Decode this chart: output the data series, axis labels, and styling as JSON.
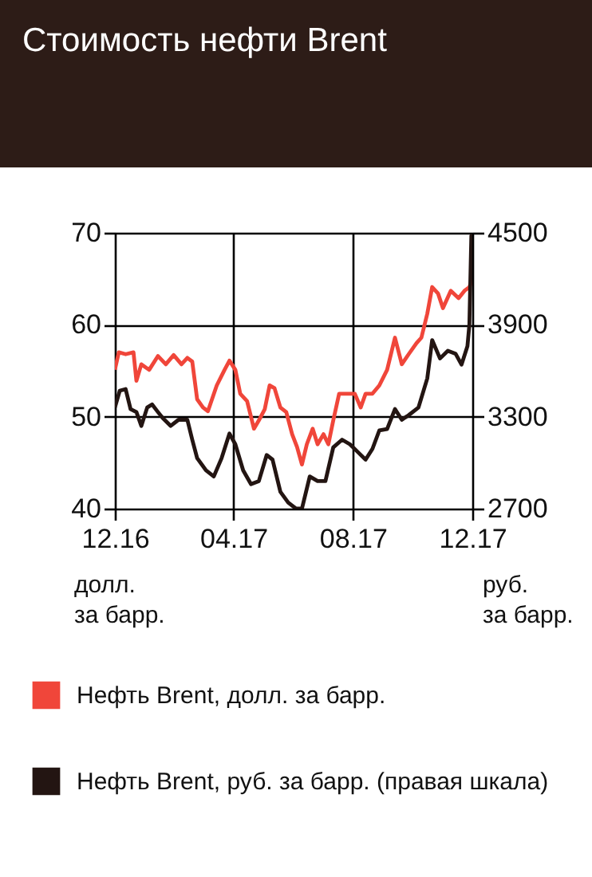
{
  "chart_data": {
    "type": "line",
    "title": "Стоимость нефти Brent",
    "ylabel": "долл. за барр.",
    "y2label": "руб. за барр.",
    "xlim": [
      "2016-12-01",
      "2017-12-01"
    ],
    "xticks": [
      {
        "value": "2016-12-01",
        "label": "12.16"
      },
      {
        "value": "2017-04-01",
        "label": "04.17"
      },
      {
        "value": "2017-08-01",
        "label": "08.17"
      },
      {
        "value": "2017-12-01",
        "label": "12.17"
      }
    ],
    "ylim": [
      40,
      70
    ],
    "yticks": [
      40,
      50,
      60,
      70
    ],
    "y2lim": [
      2700,
      4500
    ],
    "y2ticks": [
      2700,
      3300,
      3900,
      4500
    ],
    "grid": true,
    "legend": "bottom",
    "series": [
      {
        "name": "Нефть Brent, долл. за барр.",
        "color": "#f0463a",
        "x": [
          "2016-12-01",
          "2016-12-05",
          "2016-12-12",
          "2016-12-20",
          "2016-12-23",
          "2016-12-28",
          "2017-01-05",
          "2017-01-14",
          "2017-01-22",
          "2017-01-30",
          "2017-02-07",
          "2017-02-13",
          "2017-02-18",
          "2017-02-23",
          "2017-03-01",
          "2017-03-06",
          "2017-03-15",
          "2017-03-23",
          "2017-03-28",
          "2017-04-03",
          "2017-04-08",
          "2017-04-15",
          "2017-04-22",
          "2017-04-27",
          "2017-05-03",
          "2017-05-08",
          "2017-05-13",
          "2017-05-19",
          "2017-05-25",
          "2017-05-31",
          "2017-06-05",
          "2017-06-10",
          "2017-06-15",
          "2017-06-21",
          "2017-06-26",
          "2017-07-02",
          "2017-07-07",
          "2017-07-12",
          "2017-07-18",
          "2017-07-26",
          "2017-08-03",
          "2017-08-09",
          "2017-08-14",
          "2017-08-21",
          "2017-08-28",
          "2017-09-05",
          "2017-09-13",
          "2017-09-20",
          "2017-09-27",
          "2017-10-05",
          "2017-10-10",
          "2017-10-16",
          "2017-10-21",
          "2017-10-27",
          "2017-11-01",
          "2017-11-09",
          "2017-11-17",
          "2017-11-23",
          "2017-11-28",
          "2017-12-01"
        ],
        "values": [
          55.1,
          57.0,
          56.8,
          57.0,
          53.9,
          55.7,
          55.1,
          56.6,
          55.7,
          56.7,
          55.7,
          56.4,
          56.0,
          51.9,
          51.0,
          50.6,
          53.4,
          55.1,
          56.1,
          55.1,
          52.5,
          51.7,
          48.7,
          49.6,
          50.8,
          53.4,
          53.1,
          51.0,
          50.5,
          48.1,
          46.7,
          44.8,
          47.0,
          48.7,
          47.0,
          48.1,
          47.0,
          49.6,
          52.5,
          52.5,
          52.5,
          51.0,
          52.5,
          52.5,
          53.4,
          55.1,
          58.6,
          55.7,
          56.8,
          58.0,
          58.6,
          61.2,
          64.1,
          63.4,
          61.8,
          63.7,
          62.9,
          63.7,
          64.1,
          65.0
        ]
      },
      {
        "name": "Нефть Brent, руб. за барр. (правая шкала)",
        "color": "#231512",
        "axis": "y2",
        "x": [
          "2016-12-01",
          "2016-12-06",
          "2016-12-12",
          "2016-12-17",
          "2016-12-23",
          "2016-12-28",
          "2017-01-03",
          "2017-01-08",
          "2017-01-14",
          "2017-01-19",
          "2017-01-27",
          "2017-02-04",
          "2017-02-13",
          "2017-02-18",
          "2017-02-23",
          "2017-03-04",
          "2017-03-12",
          "2017-03-20",
          "2017-03-28",
          "2017-04-03",
          "2017-04-11",
          "2017-04-19",
          "2017-04-27",
          "2017-05-05",
          "2017-05-11",
          "2017-05-19",
          "2017-05-27",
          "2017-06-04",
          "2017-06-10",
          "2017-06-18",
          "2017-06-26",
          "2017-07-04",
          "2017-07-12",
          "2017-07-21",
          "2017-07-29",
          "2017-08-06",
          "2017-08-14",
          "2017-08-21",
          "2017-08-28",
          "2017-09-05",
          "2017-09-13",
          "2017-09-20",
          "2017-09-27",
          "2017-10-07",
          "2017-10-16",
          "2017-10-21",
          "2017-10-29",
          "2017-11-06",
          "2017-11-14",
          "2017-11-20",
          "2017-11-26",
          "2017-11-28",
          "2017-11-30",
          "2017-12-01"
        ],
        "values": [
          3360,
          3470,
          3480,
          3350,
          3330,
          3240,
          3360,
          3380,
          3330,
          3290,
          3240,
          3280,
          3280,
          3150,
          3030,
          2950,
          2910,
          3030,
          3190,
          3120,
          2950,
          2860,
          2880,
          3050,
          3020,
          2810,
          2740,
          2700,
          2700,
          2910,
          2880,
          2880,
          3100,
          3150,
          3120,
          3070,
          3020,
          3090,
          3210,
          3220,
          3350,
          3280,
          3310,
          3360,
          3550,
          3800,
          3680,
          3730,
          3710,
          3640,
          3760,
          3900,
          4480,
          4490
        ]
      }
    ]
  }
}
